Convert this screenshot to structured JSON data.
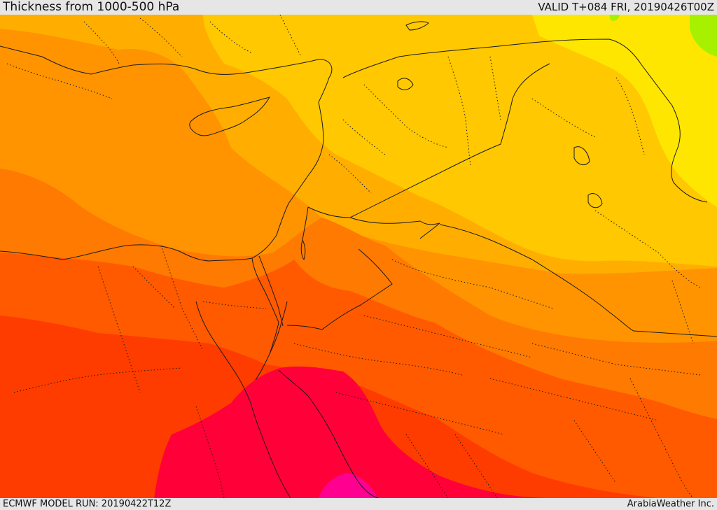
{
  "header": {
    "title": "Thickness from 1000-500 hPa",
    "valid": "VALID T+084 FRI, 20190426T00Z"
  },
  "footer": {
    "model_run": "ECMWF MODEL RUN: 20190422T12Z",
    "credit": "ArabiaWeather Inc."
  },
  "map": {
    "palette": {
      "band_lime": "#a6f000",
      "band_yellow": "#ffe600",
      "band_gold": "#ffc800",
      "band_amber": "#ffae00",
      "band_orange": "#ff9400",
      "band_dark_orange": "#ff7a00",
      "band_red_orange": "#ff5a00",
      "band_red": "#ff3c00",
      "band_crimson": "#ff0038",
      "band_magenta": "#ff0090",
      "border_color": "#1a1a1a"
    }
  }
}
